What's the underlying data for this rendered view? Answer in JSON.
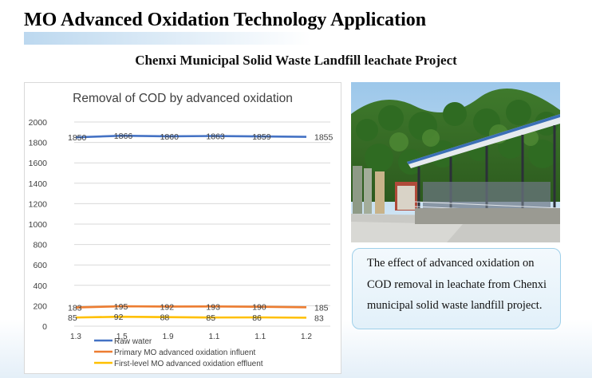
{
  "header": {
    "title": "MO Advanced Oxidation Technology Application",
    "subtitle": "Chenxi Municipal Solid Waste Landfill leachate Project"
  },
  "caption": {
    "text": "The effect of advanced oxidation on COD removal in leachate from Chenxi municipal solid waste landfill project."
  },
  "photo": {
    "description_icon": "landfill-site-photo"
  },
  "chart_data": {
    "type": "line",
    "title": "Removal of COD by advanced oxidation",
    "categories": [
      "1.3",
      "1.5",
      "1.9",
      "1.1",
      "1.1",
      "1.2"
    ],
    "ylim": [
      0,
      2000
    ],
    "yticks": [
      0,
      200,
      400,
      600,
      800,
      1000,
      1200,
      1400,
      1600,
      1800,
      2000
    ],
    "grid": true,
    "legend_position": "bottom",
    "series": [
      {
        "name": "Raw water",
        "color": "#4472c4",
        "values": [
          1850,
          1866,
          1860,
          1863,
          1859,
          1855
        ]
      },
      {
        "name": "Primary MO advanced oxidation influent",
        "color": "#ed7d31",
        "values": [
          183,
          195,
          192,
          193,
          190,
          185
        ]
      },
      {
        "name": "First-level MO advanced oxidation effluent",
        "color": "#ffc000",
        "values": [
          85,
          92,
          88,
          85,
          86,
          83
        ]
      }
    ]
  }
}
